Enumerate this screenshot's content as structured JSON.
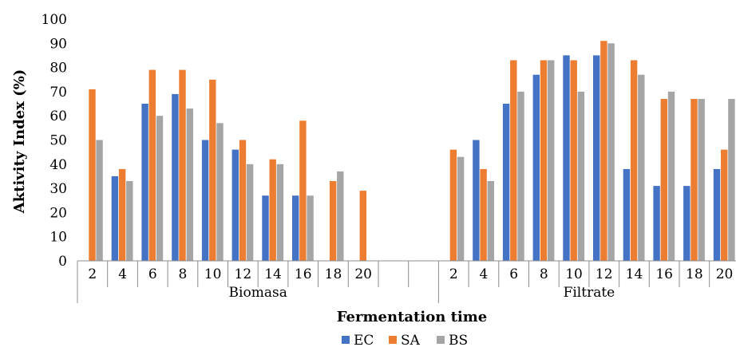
{
  "chart_data": {
    "type": "bar",
    "ylabel": "Aktivity Index (%)",
    "xlabel": "Fermentation time",
    "ylim": [
      0,
      100
    ],
    "yticks": [
      0,
      10,
      20,
      30,
      40,
      50,
      60,
      70,
      80,
      90,
      100
    ],
    "grid": false,
    "legend_position": "bottom",
    "groups": [
      {
        "name": "Biomasa",
        "categories": [
          "2",
          "4",
          "6",
          "8",
          "10",
          "12",
          "14",
          "16",
          "18",
          "20",
          ""
        ],
        "series": [
          {
            "name": "EC",
            "values": [
              0,
              35,
              65,
              69,
              50,
              46,
              27,
              27,
              0,
              0,
              0
            ]
          },
          {
            "name": "SA",
            "values": [
              71,
              38,
              79,
              79,
              75,
              50,
              42,
              58,
              33,
              29,
              0
            ]
          },
          {
            "name": "BS",
            "values": [
              50,
              33,
              60,
              63,
              57,
              40,
              40,
              27,
              37,
              0,
              0
            ]
          }
        ]
      },
      {
        "name": "Filtrate",
        "categories": [
          "2",
          "4",
          "6",
          "8",
          "10",
          "12",
          "14",
          "16",
          "18",
          "20"
        ],
        "series": [
          {
            "name": "EC",
            "values": [
              0,
              50,
              65,
              77,
              85,
              85,
              38,
              31,
              31,
              38
            ]
          },
          {
            "name": "SA",
            "values": [
              46,
              38,
              83,
              83,
              83,
              91,
              83,
              67,
              67,
              46
            ]
          },
          {
            "name": "BS",
            "values": [
              43,
              33,
              70,
              83,
              70,
              90,
              77,
              70,
              67,
              67
            ]
          }
        ]
      }
    ],
    "legend": [
      "EC",
      "SA",
      "BS"
    ],
    "colors": {
      "EC": "#4472C4",
      "SA": "#ED7D31",
      "BS": "#A5A5A5"
    }
  }
}
